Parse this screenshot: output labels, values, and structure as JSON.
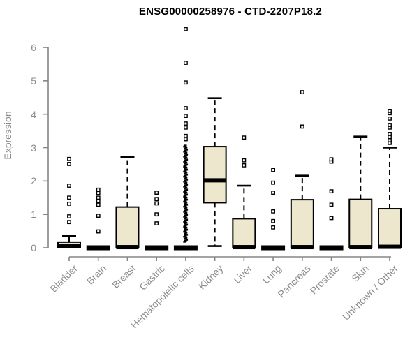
{
  "chart_data": {
    "type": "box",
    "title": "ENSG00000258976 - CTD-2207P18.2",
    "ylabel": "Expression",
    "xlabel": "",
    "ylim": [
      0,
      6.6
    ],
    "yticks": [
      0,
      1,
      2,
      3,
      4,
      5,
      6
    ],
    "grid": false,
    "legend": "none",
    "box_fill": "#EDE8CD",
    "box_border": "#000000",
    "axis_color": "#858585",
    "text_color": "#8c8c8c",
    "title_color": "#000000",
    "categories": [
      {
        "label": "Bladder",
        "q1": 0,
        "median": 0.05,
        "q3": 0.17,
        "whisker_low": 0,
        "whisker_high": 0.35,
        "outliers": [
          0.77,
          0.94,
          1.32,
          1.5,
          1.86,
          2.51,
          2.66
        ]
      },
      {
        "label": "Brain",
        "q1": 0,
        "median": 0,
        "q3": 0,
        "whisker_low": 0,
        "whisker_high": 0,
        "outliers": [
          0.49,
          0.96,
          1.29,
          1.4,
          1.5,
          1.64,
          1.74
        ]
      },
      {
        "label": "Breast",
        "q1": 0,
        "median": 0.02,
        "q3": 1.22,
        "whisker_low": 0,
        "whisker_high": 2.72,
        "outliers": []
      },
      {
        "label": "Gastric",
        "q1": 0,
        "median": 0,
        "q3": 0,
        "whisker_low": 0,
        "whisker_high": 0,
        "outliers": [
          0.73,
          1.0,
          1.33,
          1.46,
          1.65
        ]
      },
      {
        "label": "Hematopoietic cells",
        "q1": 0,
        "median": 0,
        "q3": 0,
        "whisker_low": 0,
        "whisker_high": 0,
        "outliers": [
          3.25,
          3.35,
          3.6,
          3.72,
          3.95,
          4.18,
          4.95,
          5.54,
          6.55
        ],
        "outlier_strip": {
          "min": 0.18,
          "max": 3.05
        }
      },
      {
        "label": "Kidney",
        "q1": 1.35,
        "median": 2.02,
        "q3": 3.03,
        "whisker_low": 0.05,
        "whisker_high": 4.48,
        "outliers": []
      },
      {
        "label": "Liver",
        "q1": 0,
        "median": 0.02,
        "q3": 0.87,
        "whisker_low": 0,
        "whisker_high": 1.86,
        "outliers": [
          2.47,
          2.62,
          3.3
        ]
      },
      {
        "label": "Lung",
        "q1": 0,
        "median": 0,
        "q3": 0,
        "whisker_low": 0,
        "whisker_high": 0,
        "outliers": [
          0.61,
          0.8,
          1.09,
          1.65,
          1.95,
          2.33
        ]
      },
      {
        "label": "Pancreas",
        "q1": 0,
        "median": 0.02,
        "q3": 1.44,
        "whisker_low": 0,
        "whisker_high": 2.16,
        "outliers": [
          3.63,
          4.66
        ]
      },
      {
        "label": "Prostate",
        "q1": 0,
        "median": 0,
        "q3": 0,
        "whisker_low": 0,
        "whisker_high": 0,
        "outliers": [
          0.89,
          1.29,
          1.69,
          2.58,
          2.65
        ]
      },
      {
        "label": "Skin",
        "q1": 0,
        "median": 0.02,
        "q3": 1.45,
        "whisker_low": 0,
        "whisker_high": 3.33,
        "outliers": []
      },
      {
        "label": "Unknown / Other",
        "q1": 0,
        "median": 0.03,
        "q3": 1.17,
        "whisker_low": 0,
        "whisker_high": 3.0,
        "outliers": [
          3.14,
          3.22,
          3.32,
          3.41,
          3.6,
          3.68,
          3.87,
          4.03,
          4.1
        ]
      }
    ]
  }
}
